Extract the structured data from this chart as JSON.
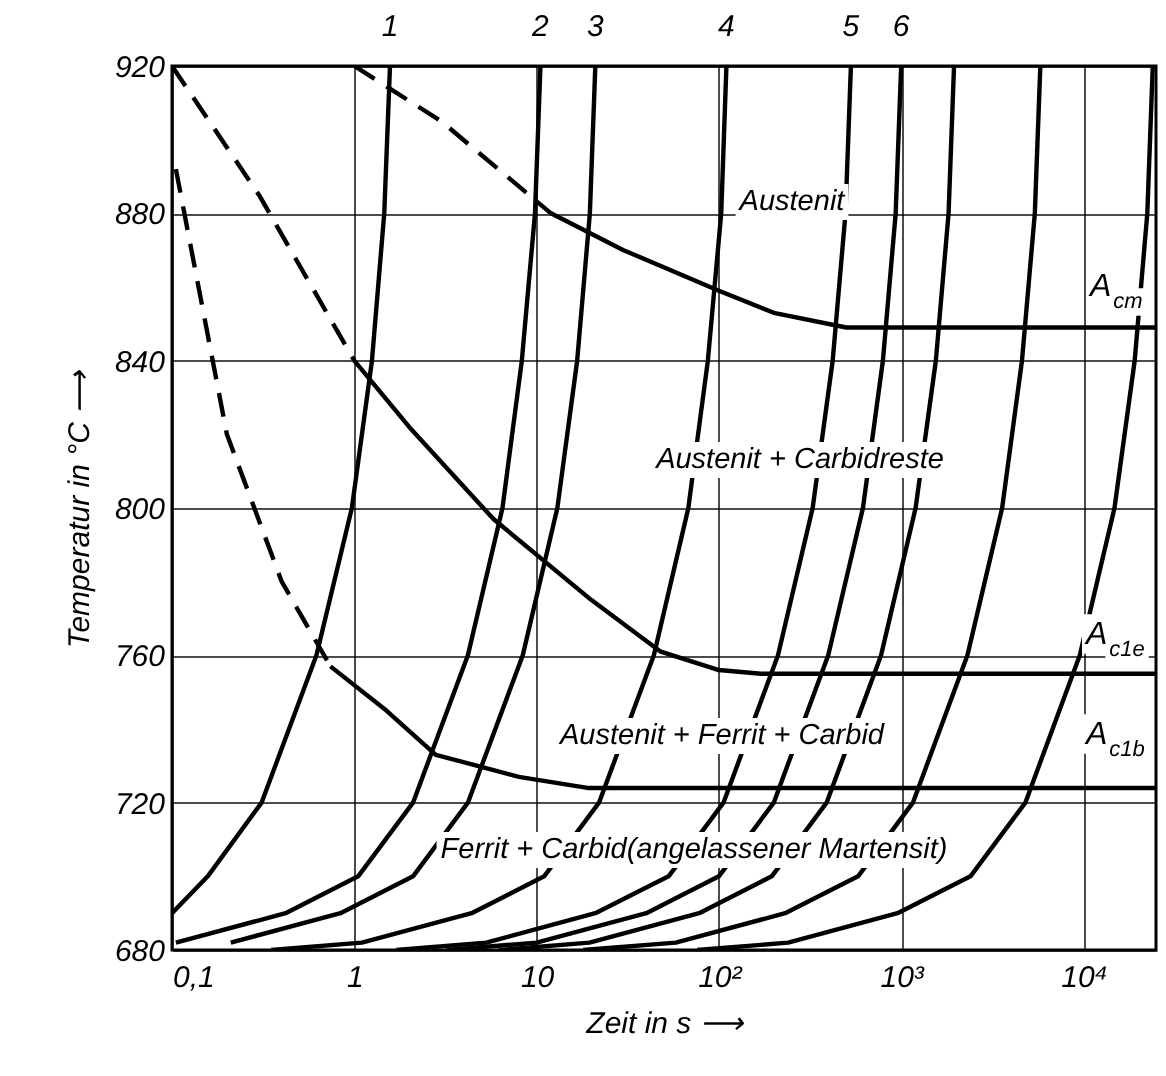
{
  "chart_data": {
    "type": "line",
    "xlabel": "Zeit in s ⟶",
    "ylabel": "Temperatur in °C ⟶",
    "log": "x",
    "grid": true,
    "xlim": [
      0.1,
      25000
    ],
    "ylim": [
      680,
      920
    ],
    "xticks": [
      {
        "value": 0.1,
        "label": "0,1"
      },
      1,
      10,
      {
        "value": 100,
        "label": "10²"
      },
      {
        "value": 1000,
        "label": "10³"
      },
      {
        "value": 10000,
        "label": "10⁴"
      }
    ],
    "yticks": [
      680,
      720,
      760,
      800,
      840,
      880,
      920
    ],
    "series": [
      {
        "color": "#000000",
        "line_style": "dashed",
        "x": [
          1,
          3,
          12
        ],
        "values": [
          920,
          905,
          880
        ]
      },
      {
        "color": "#000000",
        "x": [
          12,
          30,
          100,
          200,
          500,
          25000
        ],
        "values": [
          880,
          870,
          859,
          853,
          849,
          849
        ]
      },
      {
        "color": "#000000",
        "line_style": "dashed",
        "x": [
          0.1,
          0.3,
          1
        ],
        "values": [
          920,
          885,
          840
        ]
      },
      {
        "color": "#000000",
        "x": [
          1,
          2,
          5.8,
          20,
          48,
          100,
          170,
          25000
        ],
        "values": [
          840,
          822,
          797,
          775,
          761,
          756,
          755,
          755
        ]
      },
      {
        "color": "#000000",
        "line_style": "dashed",
        "x": [
          0.105,
          0.2,
          0.4,
          0.74
        ],
        "values": [
          892,
          820,
          780,
          757
        ]
      },
      {
        "color": "#000000",
        "x": [
          0.74,
          1.5,
          2.8,
          8,
          19,
          50,
          25000
        ],
        "values": [
          757,
          745,
          733,
          727,
          724,
          724,
          724
        ]
      },
      {
        "name": "1",
        "color": "#000000",
        "x": [
          1.57,
          1.46,
          1.25,
          0.97,
          0.62,
          0.31,
          0.157,
          0.1
        ],
        "values": [
          920,
          880,
          840,
          800,
          760,
          720,
          700,
          690
        ]
      },
      {
        "name": "2",
        "color": "#000000",
        "x": [
          10.5,
          9.8,
          8.3,
          6.5,
          4.2,
          2.1,
          1.05,
          0.42,
          0.105
        ],
        "values": [
          920,
          880,
          840,
          800,
          760,
          720,
          700,
          690,
          682
        ]
      },
      {
        "name": "3",
        "color": "#000000",
        "x": [
          21,
          19.6,
          16.7,
          13,
          8.4,
          4.2,
          2.1,
          0.84,
          0.21
        ],
        "values": [
          920,
          880,
          840,
          800,
          760,
          720,
          700,
          690,
          682
        ]
      },
      {
        "name": "4",
        "color": "#000000",
        "x": [
          110,
          103,
          87,
          68,
          44,
          22,
          11,
          4.4,
          1.1,
          0.35
        ],
        "values": [
          920,
          880,
          840,
          800,
          760,
          720,
          700,
          690,
          682,
          680
        ]
      },
      {
        "name": "5",
        "color": "#000000",
        "x": [
          530,
          495,
          421,
          327,
          211,
          106,
          53,
          21,
          5.3,
          1.7
        ],
        "values": [
          920,
          880,
          840,
          800,
          760,
          720,
          700,
          690,
          682,
          680
        ]
      },
      {
        "name": "6",
        "color": "#000000",
        "x": [
          1000,
          933,
          794,
          617,
          398,
          200,
          100,
          40,
          10,
          3.2
        ],
        "values": [
          920,
          880,
          840,
          800,
          760,
          720,
          700,
          690,
          682,
          680
        ]
      },
      {
        "color": "#000000",
        "x": [
          1950,
          1820,
          1550,
          1200,
          776,
          390,
          195,
          78,
          19.5,
          6.2
        ],
        "values": [
          920,
          880,
          840,
          800,
          760,
          720,
          700,
          690,
          682,
          680
        ]
      },
      {
        "color": "#000000",
        "x": [
          5800,
          5410,
          4600,
          3580,
          2310,
          1160,
          580,
          231,
          58,
          18
        ],
        "values": [
          920,
          880,
          840,
          800,
          760,
          720,
          700,
          690,
          682,
          680
        ]
      },
      {
        "color": "#000000",
        "x": [
          24000,
          22400,
          19100,
          14800,
          9550,
          4800,
          2400,
          955,
          240,
          76
        ],
        "values": [
          920,
          880,
          840,
          800,
          760,
          720,
          700,
          690,
          682,
          680
        ]
      }
    ],
    "annotations": [
      "Austenit",
      "Austenit + Carbidreste",
      "Austenit + Ferrit + Carbid",
      "Ferrit + Carbid(angelassener Martensit)",
      "A$_{cm}$",
      "A$_{c1e}$",
      "A$_{c1b}$"
    ]
  }
}
